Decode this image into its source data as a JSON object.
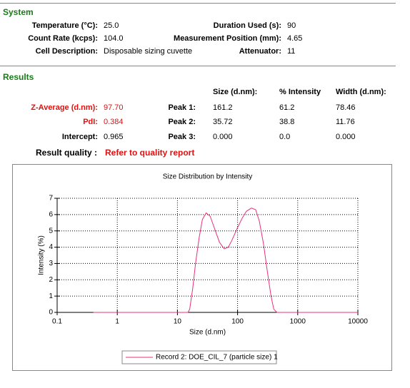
{
  "system": {
    "title": "System",
    "rows": [
      [
        {
          "label": "Temperature (°C):",
          "value": "25.0"
        },
        {
          "label": "Duration Used (s):",
          "value": "90"
        }
      ],
      [
        {
          "label": "Count Rate (kcps):",
          "value": "104.0"
        },
        {
          "label": "Measurement Position (mm):",
          "value": "4.65"
        }
      ],
      [
        {
          "label": "Cell Description:",
          "value": "Disposable sizing cuvette"
        },
        {
          "label": "Attenuator:",
          "value": "11"
        }
      ]
    ]
  },
  "results": {
    "title": "Results",
    "columns": [
      "Size (d.nm):",
      "% Intensity",
      "Width (d.nm):"
    ],
    "left": [
      {
        "label": "Z-Average (d.nm):",
        "value": "97.70"
      },
      {
        "label": "PdI:",
        "value": "0.384"
      },
      {
        "label": "Intercept:",
        "value": "0.965"
      }
    ],
    "peaks": [
      {
        "label": "Peak 1:",
        "values": [
          "161.2",
          "61.2",
          "78.46"
        ]
      },
      {
        "label": "Peak 2:",
        "values": [
          "35.72",
          "38.8",
          "11.76"
        ]
      },
      {
        "label": "Peak 3:",
        "values": [
          "0.000",
          "0.0",
          "0.000"
        ]
      }
    ],
    "quality": {
      "label": "Result quality :",
      "value": "Refer to quality report"
    }
  },
  "chart_data": {
    "type": "line",
    "title": "Size Distribution by Intensity",
    "x_label": "Size (d.nm)",
    "y_label": "Intensity (%)",
    "xscale": "log",
    "xlim": [
      0.1,
      10000
    ],
    "xticks": [
      0.1,
      1,
      10,
      100,
      1000,
      10000
    ],
    "ylim": [
      0,
      7
    ],
    "yticks": [
      0,
      1,
      2,
      3,
      4,
      5,
      6,
      7
    ],
    "grid": true,
    "x": [
      0.4,
      1,
      5,
      10,
      15,
      16,
      18,
      20,
      23,
      26,
      30,
      35,
      40,
      50,
      60,
      70,
      80,
      100,
      120,
      140,
      170,
      200,
      230,
      270,
      310,
      360,
      400,
      450,
      1000,
      5000,
      10000
    ],
    "series": [
      {
        "name": "Record 2: DOE_CIL_7 (particle size) 1",
        "color": "#e8307c",
        "values": [
          0,
          0,
          0,
          0,
          0,
          0.2,
          1.5,
          3.0,
          4.6,
          5.7,
          6.1,
          5.9,
          5.3,
          4.3,
          3.9,
          4.0,
          4.4,
          5.2,
          5.8,
          6.2,
          6.4,
          6.3,
          5.6,
          4.2,
          2.6,
          1.0,
          0.2,
          0,
          0,
          0,
          0
        ]
      }
    ]
  }
}
